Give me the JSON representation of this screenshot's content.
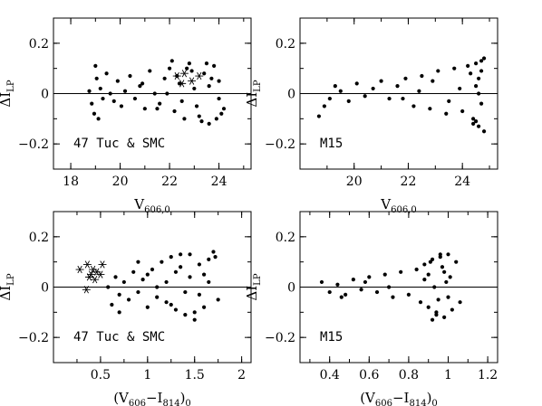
{
  "chart_data": [
    {
      "type": "scatter",
      "panel": "top-left",
      "annotation": "47 Tuc & SMC",
      "xlabel": "V",
      "xlabel_sub": "606,0",
      "ylabel": "ΔI",
      "ylabel_sub": "LP",
      "xlim": [
        17.3,
        25.3
      ],
      "ylim": [
        -0.3,
        0.3
      ],
      "xticks": [
        18,
        20,
        22,
        24
      ],
      "xtick_labels": [
        "18",
        "20",
        "22",
        "24"
      ],
      "yticks": [
        -0.2,
        0,
        0.2
      ],
      "ytick_labels": [
        "−0.2",
        "0",
        "0.2"
      ],
      "zero_line": true,
      "series": [
        {
          "marker": "dot",
          "x": [
            18.75,
            18.85,
            18.95,
            19.0,
            19.05,
            19.12,
            19.2,
            19.3,
            19.45,
            19.6,
            19.75,
            19.9,
            20.05,
            20.2,
            20.4,
            20.6,
            20.8,
            21.0,
            21.2,
            21.4,
            21.6,
            21.8,
            22.0,
            22.2,
            22.4,
            22.6,
            22.8,
            23.0,
            23.2,
            23.4,
            23.6,
            23.8,
            24.0,
            24.2,
            22.1,
            22.5,
            22.9,
            23.3,
            23.7,
            24.1,
            21.9,
            22.7,
            23.1,
            23.5,
            23.9,
            20.9,
            21.5,
            22.3,
            23.6,
            24.0
          ],
          "y": [
            0.01,
            -0.04,
            -0.08,
            0.11,
            0.06,
            -0.1,
            0.02,
            -0.02,
            0.08,
            0.0,
            -0.03,
            0.05,
            -0.05,
            0.01,
            0.07,
            -0.02,
            0.03,
            -0.06,
            0.09,
            0.0,
            -0.04,
            0.06,
            0.1,
            -0.07,
            0.04,
            -0.1,
            0.12,
            0.02,
            -0.09,
            0.08,
            -0.12,
            0.11,
            0.05,
            -0.06,
            0.13,
            -0.03,
            0.09,
            -0.11,
            0.06,
            -0.08,
            0.0,
            0.1,
            -0.05,
            0.12,
            -0.1,
            0.04,
            -0.06,
            0.07,
            0.03,
            -0.02
          ]
        },
        {
          "marker": "star",
          "x": [
            22.3,
            22.6,
            22.9,
            23.2,
            22.5
          ],
          "y": [
            0.07,
            0.08,
            0.05,
            0.07,
            0.04
          ]
        }
      ]
    },
    {
      "type": "scatter",
      "panel": "top-right",
      "annotation": "M15",
      "xlabel": "V",
      "xlabel_sub": "606,0",
      "ylabel": "ΔI",
      "ylabel_sub": "LP",
      "xlim": [
        18.0,
        25.3
      ],
      "ylim": [
        -0.3,
        0.3
      ],
      "xticks": [
        20,
        22,
        24
      ],
      "xtick_labels": [
        "20",
        "22",
        "24"
      ],
      "yticks": [
        -0.2,
        0,
        0.2
      ],
      "ytick_labels": [
        "−0.2",
        "0",
        "0.2"
      ],
      "zero_line": true,
      "series": [
        {
          "marker": "dot",
          "x": [
            18.7,
            18.9,
            19.1,
            19.3,
            19.5,
            19.8,
            20.1,
            20.4,
            20.7,
            21.0,
            21.3,
            21.6,
            21.9,
            22.2,
            22.5,
            22.8,
            23.1,
            23.4,
            23.7,
            24.0,
            24.2,
            24.4,
            24.5,
            24.6,
            24.7,
            24.8,
            24.5,
            24.3,
            24.6,
            24.7,
            23.9,
            23.5,
            22.9,
            22.4,
            21.8,
            24.6,
            24.8,
            24.4,
            24.7,
            24.5
          ],
          "y": [
            -0.09,
            -0.05,
            -0.02,
            0.03,
            0.01,
            -0.03,
            0.04,
            -0.01,
            0.02,
            0.05,
            -0.02,
            0.03,
            0.06,
            -0.05,
            0.07,
            -0.06,
            0.09,
            -0.08,
            0.1,
            -0.07,
            0.11,
            -0.1,
            0.12,
            -0.13,
            0.13,
            0.14,
            -0.11,
            0.08,
            0.0,
            -0.04,
            0.02,
            -0.03,
            0.05,
            0.01,
            -0.02,
            0.06,
            -0.15,
            -0.12,
            0.09,
            0.03
          ]
        }
      ]
    },
    {
      "type": "scatter",
      "panel": "bottom-left",
      "annotation": "47 Tuc & SMC",
      "xlabel": "(V",
      "xlabel_mid": "606",
      "xlabel_dash": "−I",
      "xlabel_mid2": "814",
      "xlabel_end": ")",
      "xlabel_sub": "0",
      "ylabel": "ΔI",
      "ylabel_sub": "LP",
      "xlim": [
        0.0,
        2.1
      ],
      "ylim": [
        -0.3,
        0.3
      ],
      "xticks": [
        0.5,
        1.0,
        1.5,
        2.0
      ],
      "xtick_labels": [
        "0.5",
        "1",
        "1.5",
        "2"
      ],
      "yticks": [
        -0.2,
        0,
        0.2
      ],
      "ytick_labels": [
        "−0.2",
        "0",
        "0.2"
      ],
      "zero_line": true,
      "series": [
        {
          "marker": "dot",
          "x": [
            0.58,
            0.62,
            0.66,
            0.7,
            0.75,
            0.8,
            0.85,
            0.9,
            0.95,
            1.0,
            1.05,
            1.1,
            1.15,
            1.2,
            1.25,
            1.3,
            1.35,
            1.4,
            1.45,
            1.5,
            1.55,
            1.6,
            1.65,
            1.7,
            1.75,
            1.0,
            1.2,
            1.4,
            1.6,
            1.3,
            1.5,
            1.1,
            0.9,
            1.45,
            1.55,
            1.65,
            0.7,
            1.25,
            1.35,
            1.72
          ],
          "y": [
            0.0,
            -0.07,
            0.04,
            -0.03,
            0.02,
            -0.05,
            0.06,
            -0.02,
            0.03,
            -0.08,
            0.07,
            -0.04,
            0.1,
            -0.06,
            0.12,
            -0.09,
            0.08,
            -0.11,
            0.13,
            -0.1,
            0.09,
            -0.08,
            0.11,
            0.14,
            -0.05,
            0.05,
            0.02,
            -0.02,
            0.05,
            0.06,
            -0.13,
            0.0,
            0.1,
            0.04,
            -0.03,
            0.02,
            -0.1,
            -0.07,
            0.13,
            0.12
          ]
        },
        {
          "marker": "star",
          "x": [
            0.28,
            0.36,
            0.42,
            0.4,
            0.46,
            0.52,
            0.38,
            0.44,
            0.5,
            0.35
          ],
          "y": [
            0.07,
            0.09,
            0.07,
            0.05,
            0.06,
            0.09,
            0.04,
            0.03,
            0.05,
            -0.01
          ]
        }
      ]
    },
    {
      "type": "scatter",
      "panel": "bottom-right",
      "annotation": "M15",
      "xlabel": "(V",
      "xlabel_mid": "606",
      "xlabel_dash": "−I",
      "xlabel_mid2": "814",
      "xlabel_end": ")",
      "xlabel_sub": "0",
      "ylabel": "ΔI",
      "ylabel_sub": "LP",
      "xlim": [
        0.25,
        1.25
      ],
      "ylim": [
        -0.3,
        0.3
      ],
      "xticks": [
        0.4,
        0.6,
        0.8,
        1.0,
        1.2
      ],
      "xtick_labels": [
        "0.4",
        "0.6",
        "0.8",
        "1",
        "1.2"
      ],
      "yticks": [
        -0.2,
        0,
        0.2
      ],
      "ytick_labels": [
        "−0.2",
        "0",
        "0.2"
      ],
      "zero_line": true,
      "series": [
        {
          "marker": "dot",
          "x": [
            0.36,
            0.4,
            0.44,
            0.48,
            0.52,
            0.56,
            0.6,
            0.64,
            0.68,
            0.72,
            0.76,
            0.8,
            0.84,
            0.86,
            0.88,
            0.9,
            0.92,
            0.94,
            0.96,
            0.98,
            1.0,
            1.02,
            1.04,
            1.06,
            0.9,
            0.93,
            0.95,
            0.97,
            0.99,
            0.92,
            0.96,
            1.0,
            0.88,
            0.94,
            0.98,
            0.7,
            0.58,
            0.46,
            1.01,
            0.91
          ],
          "y": [
            0.02,
            -0.02,
            0.01,
            -0.03,
            0.03,
            -0.01,
            0.04,
            -0.02,
            0.05,
            -0.04,
            0.06,
            -0.03,
            0.07,
            -0.06,
            0.09,
            -0.08,
            0.11,
            -0.1,
            0.12,
            -0.12,
            0.13,
            -0.09,
            0.1,
            -0.06,
            0.05,
            0.0,
            -0.05,
            0.08,
            0.02,
            -0.13,
            0.13,
            -0.04,
            0.03,
            -0.11,
            0.06,
            0.0,
            0.02,
            -0.04,
            0.04,
            0.1
          ]
        }
      ]
    }
  ]
}
